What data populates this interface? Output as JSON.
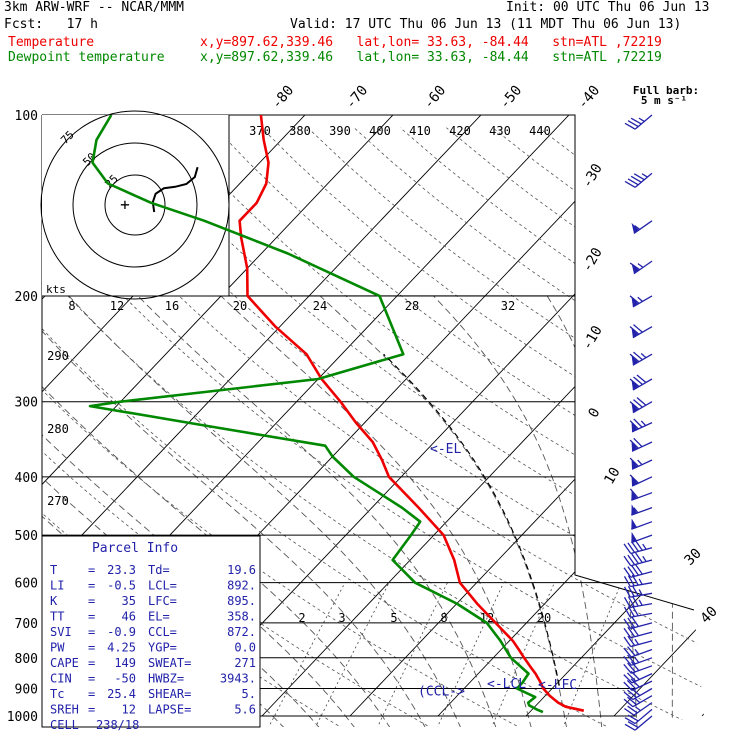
{
  "header": {
    "model": "3km ARW-WRF -- NCAR/MMM",
    "init": "Init: 00 UTC Thu 06 Jun 13",
    "fcst": "Fcst:   17 h",
    "valid": "Valid: 17 UTC Thu 06 Jun 13 (11 MDT Thu 06 Jun 13)",
    "temp_label": "Temperature",
    "dew_label": "Dewpoint temperature",
    "location_info": "x,y=897.62,339.46   lat,lon= 33.63, -84.44   stn=ATL ,72219",
    "temp_color": "#ee0000",
    "dew_color": "#008800"
  },
  "wind_key": {
    "full_barb": "Full barb:",
    "units": "5 m s⁻¹"
  },
  "hodograph": {
    "units": "kts",
    "ring_labels": [
      "75",
      "50",
      "25"
    ],
    "speed_labels": [
      "8",
      "12",
      "16",
      "20",
      "24",
      "28",
      "32"
    ]
  },
  "parcel_info": {
    "title": "Parcel Info",
    "rows": [
      {
        "k1": "T",
        "v1": "23.3",
        "k2": "Td",
        "v2": "19.6"
      },
      {
        "k1": "LI",
        "v1": "-0.5",
        "k2": "LCL",
        "v2": "892."
      },
      {
        "k1": "K",
        "v1": "35",
        "k2": "LFC",
        "v2": "895."
      },
      {
        "k1": "TT",
        "v1": "46",
        "k2": "EL",
        "v2": "358."
      },
      {
        "k1": "SVI",
        "v1": "-0.9",
        "k2": "CCL",
        "v2": "872."
      },
      {
        "k1": "PW",
        "v1": "4.25",
        "k2": "YGP",
        "v2": "0.0"
      },
      {
        "k1": "CAPE",
        "v1": "149",
        "k2": "SWEAT",
        "v2": "271"
      },
      {
        "k1": "CIN",
        "v1": "-50",
        "k2": "HWBZ",
        "v2": "3943."
      },
      {
        "k1": "Tc",
        "v1": "25.4",
        "k2": "SHEAR",
        "v2": "5."
      },
      {
        "k1": "SREH",
        "v1": "12",
        "k2": "LAPSE",
        "v2": "5.6"
      },
      {
        "k1": "CELL",
        "v1": "238/18",
        "k2": "",
        "v2": ""
      }
    ]
  },
  "chart_data": {
    "type": "line",
    "diagram": "skew-T log-p",
    "pressure_levels_hPa": [
      100,
      200,
      300,
      400,
      500,
      600,
      700,
      800,
      900,
      1000
    ],
    "isotherm_labels_C": [
      "-80",
      "-70",
      "-60",
      "-50",
      "-40",
      "-30",
      "-20",
      "-10",
      "0",
      "10",
      "20",
      "30",
      "40"
    ],
    "theta_e_labels_K": [
      "370",
      "380",
      "390",
      "400",
      "410",
      "420",
      "430",
      "440"
    ],
    "theta_labels_K": [
      "290",
      "280",
      "270"
    ],
    "mixing_ratio_labels": [
      "2",
      "3",
      "5",
      "8",
      "12",
      "20"
    ],
    "level_markers": {
      "el": "EL",
      "lcl": "LCL",
      "lfc": "LFC",
      "ccl": "CCL"
    },
    "series": [
      {
        "name": "Temperature",
        "color": "#ee0000",
        "p": [
          980,
          965,
          950,
          925,
          900,
          875,
          850,
          825,
          800,
          775,
          750,
          700,
          650,
          600,
          550,
          500,
          450,
          400,
          375,
          350,
          325,
          300,
          275,
          250,
          225,
          200,
          180,
          160,
          150,
          140,
          130,
          120,
          110,
          100
        ],
        "t": [
          26.0,
          23.5,
          22.2,
          20.5,
          19.0,
          17.8,
          16.5,
          15.0,
          13.5,
          12.0,
          10.4,
          6.5,
          2.3,
          -1.9,
          -5.0,
          -8.9,
          -14.7,
          -21.4,
          -24.0,
          -27.0,
          -31.0,
          -35.0,
          -39.6,
          -44.0,
          -50.5,
          -57.0,
          -60.0,
          -64.0,
          -66.0,
          -66.0,
          -67.0,
          -69.0,
          -72.0,
          -75.0
        ]
      },
      {
        "name": "Dewpoint temperature",
        "color": "#008800",
        "p": [
          985,
          975,
          960,
          950,
          930,
          900,
          880,
          850,
          800,
          750,
          700,
          650,
          600,
          550,
          500,
          475,
          450,
          400,
          370,
          355,
          330,
          305,
          300,
          275,
          250,
          200,
          170,
          150,
          140,
          130,
          120,
          110,
          100
        ],
        "t": [
          21.5,
          20.5,
          19.2,
          18.8,
          19.0,
          16.0,
          16.0,
          15.7,
          12.0,
          9.0,
          5.5,
          0.0,
          -7.0,
          -12.0,
          -12.6,
          -13.0,
          -16.6,
          -25.4,
          -30.0,
          -32.0,
          -47.0,
          -63.0,
          -60.0,
          -40.0,
          -33.0,
          -42.0,
          -57.0,
          -70.0,
          -78.0,
          -85.0,
          -89.0,
          -91.0,
          -92.0
        ]
      }
    ],
    "parcel_level_hPa": {
      "lcl": 892,
      "lfc": 895,
      "ccl": 872,
      "el": 358
    },
    "hodograph_trace": {
      "u": [
        3,
        2,
        4,
        7,
        10,
        18,
        26,
        32,
        34
      ],
      "v": [
        -5,
        2,
        8,
        10,
        12,
        13,
        15,
        20,
        27
      ]
    },
    "wind_profile": {
      "p": [
        1000,
        975,
        950,
        925,
        900,
        875,
        850,
        825,
        800,
        775,
        750,
        725,
        700,
        675,
        650,
        625,
        600,
        575,
        550,
        525,
        500,
        475,
        450,
        425,
        400,
        375,
        350,
        325,
        300,
        275,
        250,
        225,
        200,
        175,
        150,
        125,
        100
      ],
      "dir": [
        230,
        230,
        235,
        240,
        240,
        245,
        245,
        250,
        250,
        250,
        255,
        255,
        255,
        260,
        260,
        260,
        260,
        255,
        255,
        255,
        250,
        250,
        250,
        250,
        245,
        245,
        245,
        245,
        240,
        240,
        240,
        240,
        240,
        235,
        235,
        230,
        230
      ],
      "speed": [
        4,
        4,
        5,
        5,
        6,
        6,
        6,
        6,
        5,
        5,
        5,
        6,
        6,
        6,
        7,
        7,
        7,
        8,
        9,
        9,
        10,
        10,
        11,
        12,
        12,
        13,
        14,
        15,
        16,
        16,
        15,
        14,
        13,
        13,
        11,
        9,
        7
      ]
    }
  }
}
